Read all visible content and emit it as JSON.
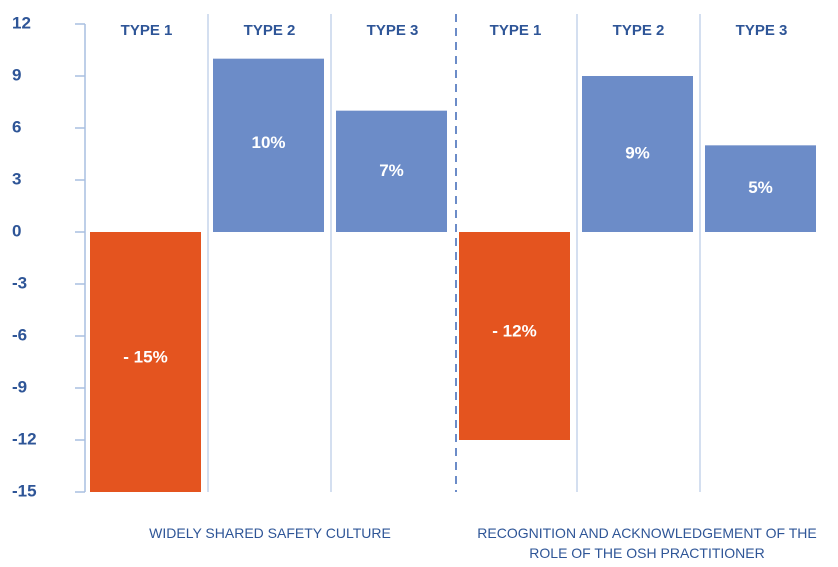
{
  "chart_data": {
    "type": "bar",
    "categories": [
      "WIDELY SHARED SAFETY CULTURE",
      "RECOGNITION AND ACKNOWLEDGEMENT OF THE ROLE OF THE OSH PRACTITIONER"
    ],
    "series": [
      {
        "name": "TYPE 1",
        "color": "#e4541f",
        "values": [
          -15,
          -12
        ],
        "value_labels": [
          "- 15%",
          "- 12%"
        ]
      },
      {
        "name": "TYPE 2",
        "color": "#6c8cc8",
        "values": [
          10,
          9
        ],
        "value_labels": [
          "10%",
          "9%"
        ]
      },
      {
        "name": "TYPE 3",
        "color": "#6c8cc8",
        "values": [
          7,
          5
        ],
        "value_labels": [
          "7%",
          "5%"
        ]
      }
    ],
    "ylim": [
      -15,
      12
    ],
    "yticks": [
      -15,
      -12,
      -9,
      -6,
      -3,
      0,
      3,
      6,
      9,
      12
    ]
  }
}
